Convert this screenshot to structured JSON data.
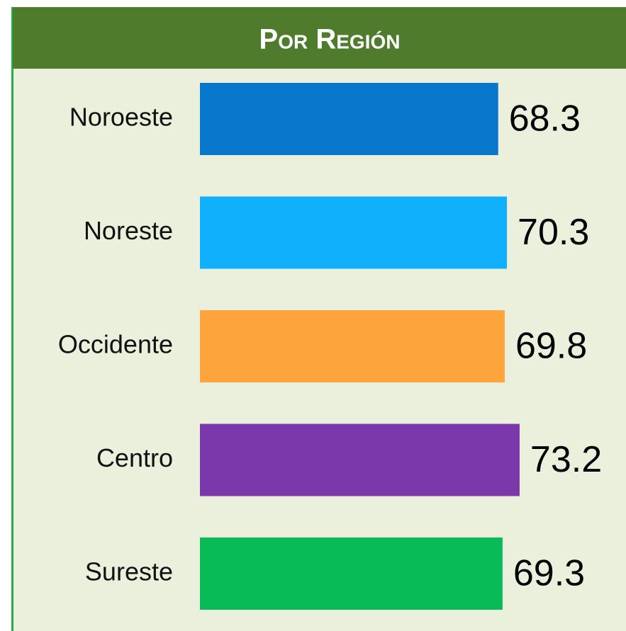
{
  "chart_data": {
    "type": "barh",
    "title": "Por Región",
    "categories": [
      "Noroeste",
      "Noreste",
      "Occidente",
      "Centro",
      "Sureste"
    ],
    "values": [
      68.3,
      70.3,
      69.8,
      73.2,
      69.3
    ],
    "colors": [
      "#0777cc",
      "#10b0fc",
      "#fea43c",
      "#7a38aa",
      "#08bb57"
    ],
    "xlim": [
      0,
      100
    ]
  }
}
